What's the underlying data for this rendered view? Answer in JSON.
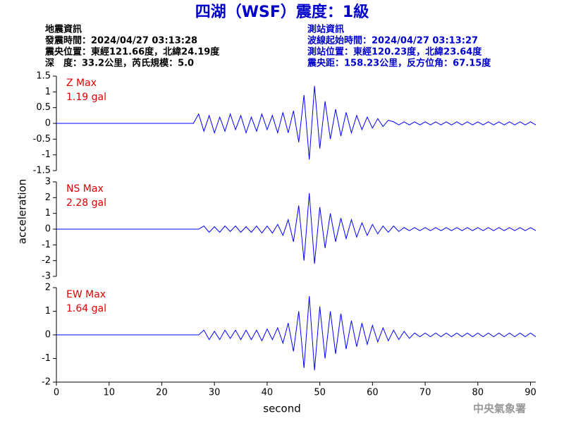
{
  "header": {
    "title": "四湖（WSF）震度：1級",
    "left": [
      "地震資訊",
      "發震時間：2024/04/27 03:13:28",
      "震央位置：東經121.66度，北緯24.19度",
      "深　度：33.2公里，芮氏規模：5.0"
    ],
    "right": [
      "測站資訊",
      "波線起始時間：2024/04/27 03:13:27",
      "測站位置：東經120.23度，北緯23.64度",
      "震央距：158.23公里，反方位角：67.15度"
    ],
    "watermark": "中央氣象署"
  },
  "chart_data": [
    {
      "type": "line",
      "label": "Z Max",
      "max_label": "1.19 gal",
      "label_color": "#e00000",
      "x": [
        0,
        1,
        2,
        3,
        4,
        5,
        6,
        7,
        8,
        9,
        10,
        11,
        12,
        13,
        14,
        15,
        16,
        17,
        18,
        19,
        20,
        21,
        22,
        23,
        24,
        25,
        26,
        27,
        28,
        29,
        30,
        31,
        32,
        33,
        34,
        35,
        36,
        37,
        38,
        39,
        40,
        41,
        42,
        43,
        44,
        45,
        46,
        47,
        48,
        49,
        50,
        51,
        52,
        53,
        54,
        55,
        56,
        57,
        58,
        59,
        60,
        61,
        62,
        63,
        64,
        65,
        66,
        67,
        68,
        69,
        70,
        71,
        72,
        73,
        74,
        75,
        76,
        77,
        78,
        79,
        80,
        81,
        82,
        83,
        84,
        85,
        86,
        87,
        88,
        89,
        90,
        91
      ],
      "series": [
        {
          "name": "Z",
          "color": "#0000ff",
          "values": [
            0,
            0,
            0,
            0,
            0,
            0,
            0,
            0,
            0,
            0,
            0,
            0,
            0,
            0,
            0,
            0,
            0,
            0,
            0,
            0,
            0,
            0,
            0,
            0,
            0,
            0,
            0,
            0.3,
            -0.25,
            0.25,
            -0.3,
            0.2,
            -0.25,
            0.3,
            -0.2,
            0.25,
            -0.3,
            0.2,
            -0.25,
            0.3,
            -0.2,
            0.25,
            -0.3,
            0.35,
            -0.3,
            0.4,
            -0.6,
            0.9,
            -1.15,
            1.19,
            -0.8,
            0.7,
            -0.5,
            0.45,
            -0.4,
            0.35,
            -0.3,
            0.25,
            -0.2,
            0.2,
            -0.15,
            0.15,
            -0.1,
            0.1,
            0.05,
            -0.05,
            0.05,
            -0.05,
            0.05,
            -0.05,
            0.05,
            -0.05,
            0.05,
            -0.05,
            0.05,
            -0.05,
            0.05,
            -0.05,
            0.05,
            -0.05,
            0.05,
            -0.05,
            0.05,
            -0.05,
            0.05,
            -0.05,
            0.05,
            -0.05,
            0.05,
            -0.05,
            0.05,
            -0.05
          ]
        }
      ],
      "ylim": [
        -1.5,
        1.5
      ],
      "yticks": [
        1.5,
        1,
        0.5,
        0,
        -0.5,
        -1,
        -1.5
      ],
      "xlim": [
        0,
        91
      ]
    },
    {
      "type": "line",
      "label": "NS Max",
      "max_label": "2.28 gal",
      "label_color": "#e00000",
      "ylabel": "acceleration",
      "x": [
        0,
        1,
        2,
        3,
        4,
        5,
        6,
        7,
        8,
        9,
        10,
        11,
        12,
        13,
        14,
        15,
        16,
        17,
        18,
        19,
        20,
        21,
        22,
        23,
        24,
        25,
        26,
        27,
        28,
        29,
        30,
        31,
        32,
        33,
        34,
        35,
        36,
        37,
        38,
        39,
        40,
        41,
        42,
        43,
        44,
        45,
        46,
        47,
        48,
        49,
        50,
        51,
        52,
        53,
        54,
        55,
        56,
        57,
        58,
        59,
        60,
        61,
        62,
        63,
        64,
        65,
        66,
        67,
        68,
        69,
        70,
        71,
        72,
        73,
        74,
        75,
        76,
        77,
        78,
        79,
        80,
        81,
        82,
        83,
        84,
        85,
        86,
        87,
        88,
        89,
        90,
        91
      ],
      "series": [
        {
          "name": "NS",
          "color": "#0000ff",
          "values": [
            0,
            0,
            0,
            0,
            0,
            0,
            0,
            0,
            0,
            0,
            0,
            0,
            0,
            0,
            0,
            0,
            0,
            0,
            0,
            0,
            0,
            0,
            0,
            0,
            0,
            0,
            0,
            0,
            0.2,
            -0.2,
            0.15,
            -0.2,
            0.2,
            -0.15,
            0.2,
            -0.2,
            0.15,
            -0.2,
            0.2,
            -0.25,
            0.2,
            -0.25,
            0.3,
            -0.4,
            0.6,
            -0.8,
            1.5,
            -2.0,
            2.28,
            -2.2,
            1.4,
            -1.2,
            1.0,
            -0.8,
            0.7,
            -0.6,
            0.6,
            -0.5,
            0.4,
            -0.4,
            0.3,
            -0.3,
            0.2,
            -0.2,
            0.2,
            -0.15,
            0.1,
            -0.1,
            0.1,
            -0.1,
            0.1,
            -0.1,
            0.1,
            -0.1,
            0.1,
            -0.1,
            0.1,
            -0.1,
            0.1,
            -0.1,
            0.1,
            -0.1,
            0.1,
            -0.1,
            0.1,
            -0.1,
            0.1,
            -0.1,
            0.1,
            -0.1,
            0.1,
            -0.1
          ]
        }
      ],
      "ylim": [
        -3,
        3
      ],
      "yticks": [
        3,
        2,
        1,
        0,
        -1,
        -2,
        -3
      ],
      "xlim": [
        0,
        91
      ]
    },
    {
      "type": "line",
      "label": "EW Max",
      "max_label": "1.64 gal",
      "label_color": "#e00000",
      "xlabel": "second",
      "x": [
        0,
        1,
        2,
        3,
        4,
        5,
        6,
        7,
        8,
        9,
        10,
        11,
        12,
        13,
        14,
        15,
        16,
        17,
        18,
        19,
        20,
        21,
        22,
        23,
        24,
        25,
        26,
        27,
        28,
        29,
        30,
        31,
        32,
        33,
        34,
        35,
        36,
        37,
        38,
        39,
        40,
        41,
        42,
        43,
        44,
        45,
        46,
        47,
        48,
        49,
        50,
        51,
        52,
        53,
        54,
        55,
        56,
        57,
        58,
        59,
        60,
        61,
        62,
        63,
        64,
        65,
        66,
        67,
        68,
        69,
        70,
        71,
        72,
        73,
        74,
        75,
        76,
        77,
        78,
        79,
        80,
        81,
        82,
        83,
        84,
        85,
        86,
        87,
        88,
        89,
        90,
        91
      ],
      "series": [
        {
          "name": "EW",
          "color": "#0000ff",
          "values": [
            0,
            0,
            0,
            0,
            0,
            0,
            0,
            0,
            0,
            0,
            0,
            0,
            0,
            0,
            0,
            0,
            0,
            0,
            0,
            0,
            0,
            0,
            0,
            0,
            0,
            0,
            0,
            0,
            0.2,
            -0.2,
            0.15,
            -0.2,
            0.2,
            -0.15,
            0.2,
            -0.2,
            0.2,
            -0.2,
            0.2,
            -0.25,
            0.25,
            -0.2,
            0.3,
            -0.35,
            0.5,
            -0.7,
            1.0,
            -1.4,
            1.64,
            -1.5,
            1.2,
            -1.0,
            1.0,
            -0.8,
            0.9,
            -0.6,
            0.6,
            -0.5,
            0.5,
            -0.4,
            0.4,
            -0.3,
            0.3,
            -0.25,
            0.2,
            -0.2,
            0.15,
            -0.15,
            0.08,
            -0.08,
            0.08,
            -0.08,
            0.08,
            -0.08,
            0.08,
            -0.08,
            0.08,
            -0.08,
            0.08,
            -0.08,
            0.08,
            -0.08,
            0.08,
            -0.08,
            0.08,
            -0.08,
            0.08,
            -0.08,
            0.08,
            -0.08,
            0.08,
            -0.08
          ]
        }
      ],
      "ylim": [
        -2,
        2
      ],
      "yticks": [
        2,
        1,
        0,
        -1,
        -2
      ],
      "xlim": [
        0,
        91
      ],
      "xticks": [
        0,
        10,
        20,
        30,
        40,
        50,
        60,
        70,
        80,
        90
      ]
    }
  ]
}
